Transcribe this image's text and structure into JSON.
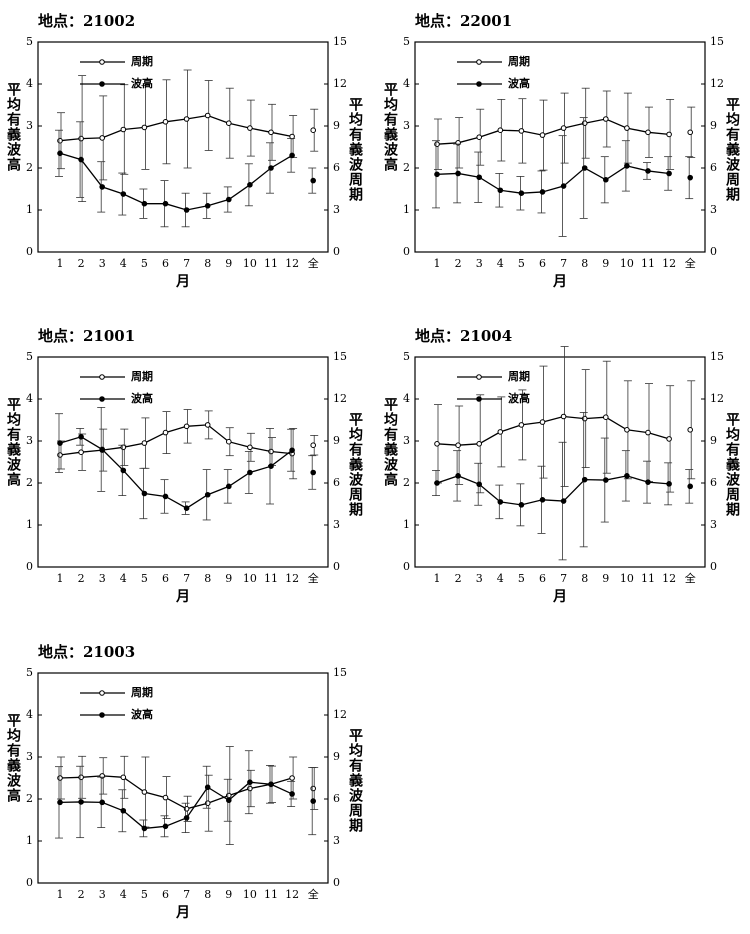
{
  "chart_data": [
    {
      "type": "line",
      "title": "地点：21002",
      "x_label": "月",
      "y_label": "平均有義波高",
      "y2_label": "平均有義波周期",
      "categories": [
        "1",
        "2",
        "3",
        "4",
        "5",
        "6",
        "7",
        "8",
        "9",
        "10",
        "11",
        "12",
        "全"
      ],
      "ylim": [
        0,
        5
      ],
      "yticks": [
        0,
        1,
        2,
        3,
        4,
        5
      ],
      "y2lim": [
        0,
        15
      ],
      "y2ticks": [
        0,
        3,
        6,
        9,
        12,
        15
      ],
      "series": [
        {
          "name": "周期",
          "axis": "y2",
          "color": "#000000",
          "marker": "open",
          "values": [
            7.95,
            8.1,
            8.15,
            8.75,
            8.9,
            9.3,
            9.5,
            9.75,
            9.2,
            8.85,
            8.55,
            8.25,
            8.7
          ],
          "errors": [
            2,
            4.5,
            3,
            3.2,
            3,
            3,
            3.5,
            2.5,
            2.5,
            2,
            2,
            1.5,
            1.5
          ]
        },
        {
          "name": "波高",
          "color": "#000000",
          "marker": "filled",
          "values": [
            2.35,
            2.2,
            1.55,
            1.38,
            1.15,
            1.15,
            1.0,
            1.1,
            1.25,
            1.6,
            2.0,
            2.3,
            1.7
          ],
          "errors": [
            0.55,
            0.9,
            0.6,
            0.5,
            0.35,
            0.55,
            0.4,
            0.3,
            0.3,
            0.5,
            0.6,
            0.4,
            0.3
          ]
        }
      ]
    },
    {
      "type": "line",
      "title": "地点：22001",
      "x_label": "月",
      "y_label": "平均有義波高",
      "y2_label": "平均有義波周期",
      "categories": [
        "1",
        "2",
        "3",
        "4",
        "5",
        "6",
        "7",
        "8",
        "9",
        "10",
        "11",
        "12",
        "全"
      ],
      "ylim": [
        0,
        5
      ],
      "yticks": [
        0,
        1,
        2,
        3,
        4,
        5
      ],
      "y2lim": [
        0,
        15
      ],
      "y2ticks": [
        0,
        3,
        6,
        9,
        12,
        15
      ],
      "series": [
        {
          "name": "周期",
          "axis": "y2",
          "color": "#000000",
          "marker": "open",
          "values": [
            7.7,
            7.8,
            8.2,
            8.7,
            8.65,
            8.35,
            8.85,
            9.2,
            9.5,
            8.85,
            8.55,
            8.4,
            8.55
          ],
          "errors": [
            1.8,
            1.8,
            2,
            2.2,
            2.3,
            2.5,
            2.5,
            2.5,
            2,
            2.5,
            1.8,
            2.5,
            1.8
          ]
        },
        {
          "name": "波高",
          "color": "#000000",
          "marker": "filled",
          "values": [
            1.85,
            1.87,
            1.78,
            1.47,
            1.4,
            1.43,
            1.57,
            2.0,
            1.72,
            2.05,
            1.93,
            1.87,
            1.77
          ],
          "errors": [
            0.8,
            0.7,
            0.6,
            0.4,
            0.4,
            0.5,
            1.2,
            1.2,
            0.55,
            0.6,
            0.2,
            0.4,
            0.5
          ]
        }
      ]
    },
    {
      "type": "line",
      "title": "地点：21001",
      "x_label": "月",
      "y_label": "平均有義波高",
      "y2_label": "平均有義波周期",
      "categories": [
        "1",
        "2",
        "3",
        "4",
        "5",
        "6",
        "7",
        "8",
        "9",
        "10",
        "11",
        "12",
        "全"
      ],
      "ylim": [
        0,
        5
      ],
      "yticks": [
        0,
        1,
        2,
        3,
        4,
        5
      ],
      "y2lim": [
        0,
        15
      ],
      "y2ticks": [
        0,
        3,
        6,
        9,
        12,
        15
      ],
      "series": [
        {
          "name": "周期",
          "axis": "y2",
          "color": "#000000",
          "marker": "open",
          "values": [
            8.0,
            8.2,
            8.35,
            8.55,
            8.85,
            9.6,
            10.05,
            10.15,
            8.95,
            8.55,
            8.25,
            8.1,
            8.7
          ],
          "errors": [
            1,
            1.3,
            1.5,
            1.3,
            1.8,
            1.5,
            1.2,
            1,
            1,
            1,
            1,
            1.8,
            0.7
          ]
        },
        {
          "name": "波高",
          "color": "#000000",
          "marker": "filled",
          "values": [
            2.95,
            3.1,
            2.8,
            2.3,
            1.75,
            1.68,
            1.4,
            1.72,
            1.92,
            2.25,
            2.4,
            2.78,
            2.25
          ],
          "errors": [
            0.7,
            0.2,
            1,
            0.6,
            0.6,
            0.4,
            0.15,
            0.6,
            0.4,
            0.5,
            0.9,
            0.5,
            0.4
          ]
        }
      ]
    },
    {
      "type": "line",
      "title": "地点：21004",
      "x_label": "月",
      "y_label": "平均有義波高",
      "y2_label": "平均有義波周期",
      "categories": [
        "1",
        "2",
        "3",
        "4",
        "5",
        "6",
        "7",
        "8",
        "9",
        "10",
        "11",
        "12",
        "全"
      ],
      "ylim": [
        0,
        5
      ],
      "yticks": [
        0,
        1,
        2,
        3,
        4,
        5
      ],
      "y2lim": [
        0,
        15
      ],
      "y2ticks": [
        0,
        3,
        6,
        9,
        12,
        15
      ],
      "series": [
        {
          "name": "周期",
          "axis": "y2",
          "color": "#000000",
          "marker": "open",
          "values": [
            8.8,
            8.7,
            8.8,
            9.65,
            10.15,
            10.35,
            10.75,
            10.6,
            10.7,
            9.8,
            9.6,
            9.15,
            9.8
          ],
          "errors": [
            2.8,
            2.8,
            3.5,
            2.5,
            2.5,
            4,
            5,
            3.5,
            4,
            3.5,
            3.5,
            3.8,
            3.5
          ]
        },
        {
          "name": "波高",
          "color": "#000000",
          "marker": "filled",
          "values": [
            2.0,
            2.17,
            1.97,
            1.55,
            1.48,
            1.6,
            1.57,
            2.08,
            2.07,
            2.17,
            2.02,
            1.98,
            1.92
          ],
          "errors": [
            0.3,
            0.6,
            0.5,
            0.4,
            0.5,
            0.8,
            1.4,
            1.6,
            1,
            0.6,
            0.5,
            0.5,
            0.4
          ]
        }
      ]
    },
    {
      "type": "line",
      "title": "地点：21003",
      "x_label": "月",
      "y_label": "平均有義波高",
      "y2_label": "平均有義波周期",
      "categories": [
        "1",
        "2",
        "3",
        "4",
        "5",
        "6",
        "7",
        "8",
        "9",
        "10",
        "11",
        "12",
        "全"
      ],
      "ylim": [
        0,
        5
      ],
      "yticks": [
        0,
        1,
        2,
        3,
        4,
        5
      ],
      "y2lim": [
        0,
        15
      ],
      "y2ticks": [
        0,
        3,
        6,
        9,
        12,
        15
      ],
      "series": [
        {
          "name": "周期",
          "axis": "y2",
          "color": "#000000",
          "marker": "open",
          "values": [
            7.5,
            7.55,
            7.65,
            7.55,
            6.5,
            6.1,
            5.3,
            5.7,
            6.25,
            6.75,
            7.05,
            7.5,
            6.75
          ],
          "errors": [
            1.5,
            1.5,
            1.3,
            1.5,
            2.5,
            1.5,
            0.9,
            2,
            3.5,
            1.3,
            1.3,
            1.5,
            1.5
          ]
        },
        {
          "name": "波高",
          "color": "#000000",
          "marker": "filled",
          "values": [
            1.92,
            1.93,
            1.92,
            1.72,
            1.3,
            1.35,
            1.55,
            2.28,
            1.97,
            2.4,
            2.35,
            2.12,
            1.95
          ],
          "errors": [
            0.85,
            0.85,
            0.6,
            0.5,
            0.2,
            0.25,
            0.35,
            0.5,
            0.5,
            0.75,
            0.45,
            0.3,
            0.8
          ]
        }
      ]
    }
  ]
}
